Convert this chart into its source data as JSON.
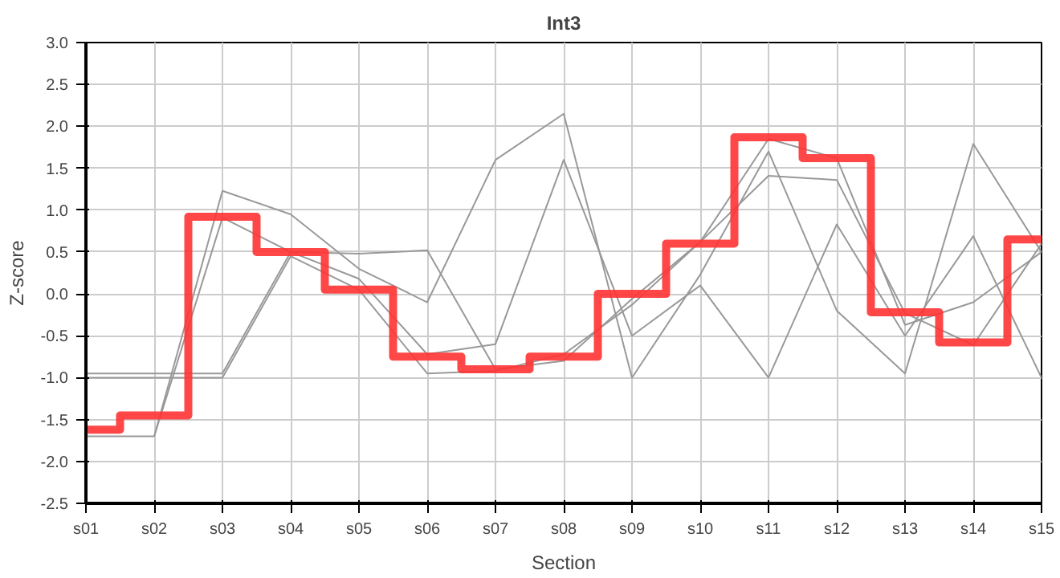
{
  "chart_data": {
    "type": "line",
    "title": "Int3",
    "xlabel": "Section",
    "ylabel": "Z-score",
    "categories": [
      "s01",
      "s02",
      "s03",
      "s04",
      "s05",
      "s06",
      "s07",
      "s08",
      "s09",
      "s10",
      "s11",
      "s12",
      "s13",
      "s14",
      "s15"
    ],
    "series": [
      {
        "color": "#999999",
        "values": [
          null,
          -1.7,
          1.23,
          0.95,
          0.3,
          -0.1,
          1.6,
          2.15,
          -1.0,
          0.23,
          1.7,
          -0.2,
          -0.95,
          1.79,
          0.5
        ]
      },
      {
        "color": "#999999",
        "values": [
          -1.7,
          -1.7,
          0.91,
          0.5,
          0.48,
          0.52,
          -0.9,
          -0.8,
          -0.06,
          0.62,
          1.85,
          1.62,
          -0.37,
          -0.1,
          0.5
        ]
      },
      {
        "color": "#999999",
        "values": [
          -0.95,
          -0.95,
          -0.95,
          0.5,
          0.18,
          -0.72,
          -0.6,
          1.6,
          -0.5,
          0.1,
          -1.0,
          0.83,
          -0.5,
          0.69,
          -1.0
        ]
      },
      {
        "color": "#999999",
        "values": [
          -1.0,
          -1.0,
          -1.0,
          0.45,
          0.05,
          -0.95,
          -0.92,
          -0.72,
          -0.13,
          0.62,
          1.41,
          1.36,
          -0.23,
          -0.61,
          0.6
        ]
      },
      {
        "type": "step",
        "color": "#ff3333",
        "values": [
          -1.62,
          -1.45,
          0.92,
          0.5,
          0.05,
          -0.75,
          -0.9,
          -0.75,
          0.0,
          0.6,
          1.87,
          1.62,
          -0.22,
          -0.58,
          0.65
        ]
      }
    ],
    "ylim": [
      -2.5,
      3.0
    ],
    "yticks": [
      {
        "value": -2.5,
        "label": "-2.5"
      },
      {
        "value": -2.0,
        "label": "-2.0"
      },
      {
        "value": -1.5,
        "label": "-1.5"
      },
      {
        "value": -1.0,
        "label": "-1.0"
      },
      {
        "value": -0.5,
        "label": "-0.5"
      },
      {
        "value": 0,
        "label": "0.0"
      },
      {
        "value": 0.5,
        "label": "0.5"
      },
      {
        "value": 1.0,
        "label": "1.0"
      },
      {
        "value": 1.5,
        "label": "1.5"
      },
      {
        "value": 2.0,
        "label": "2.0"
      },
      {
        "value": 2.5,
        "label": "2.5"
      },
      {
        "value": 3.0,
        "label": "3.0"
      }
    ],
    "grid": true
  }
}
